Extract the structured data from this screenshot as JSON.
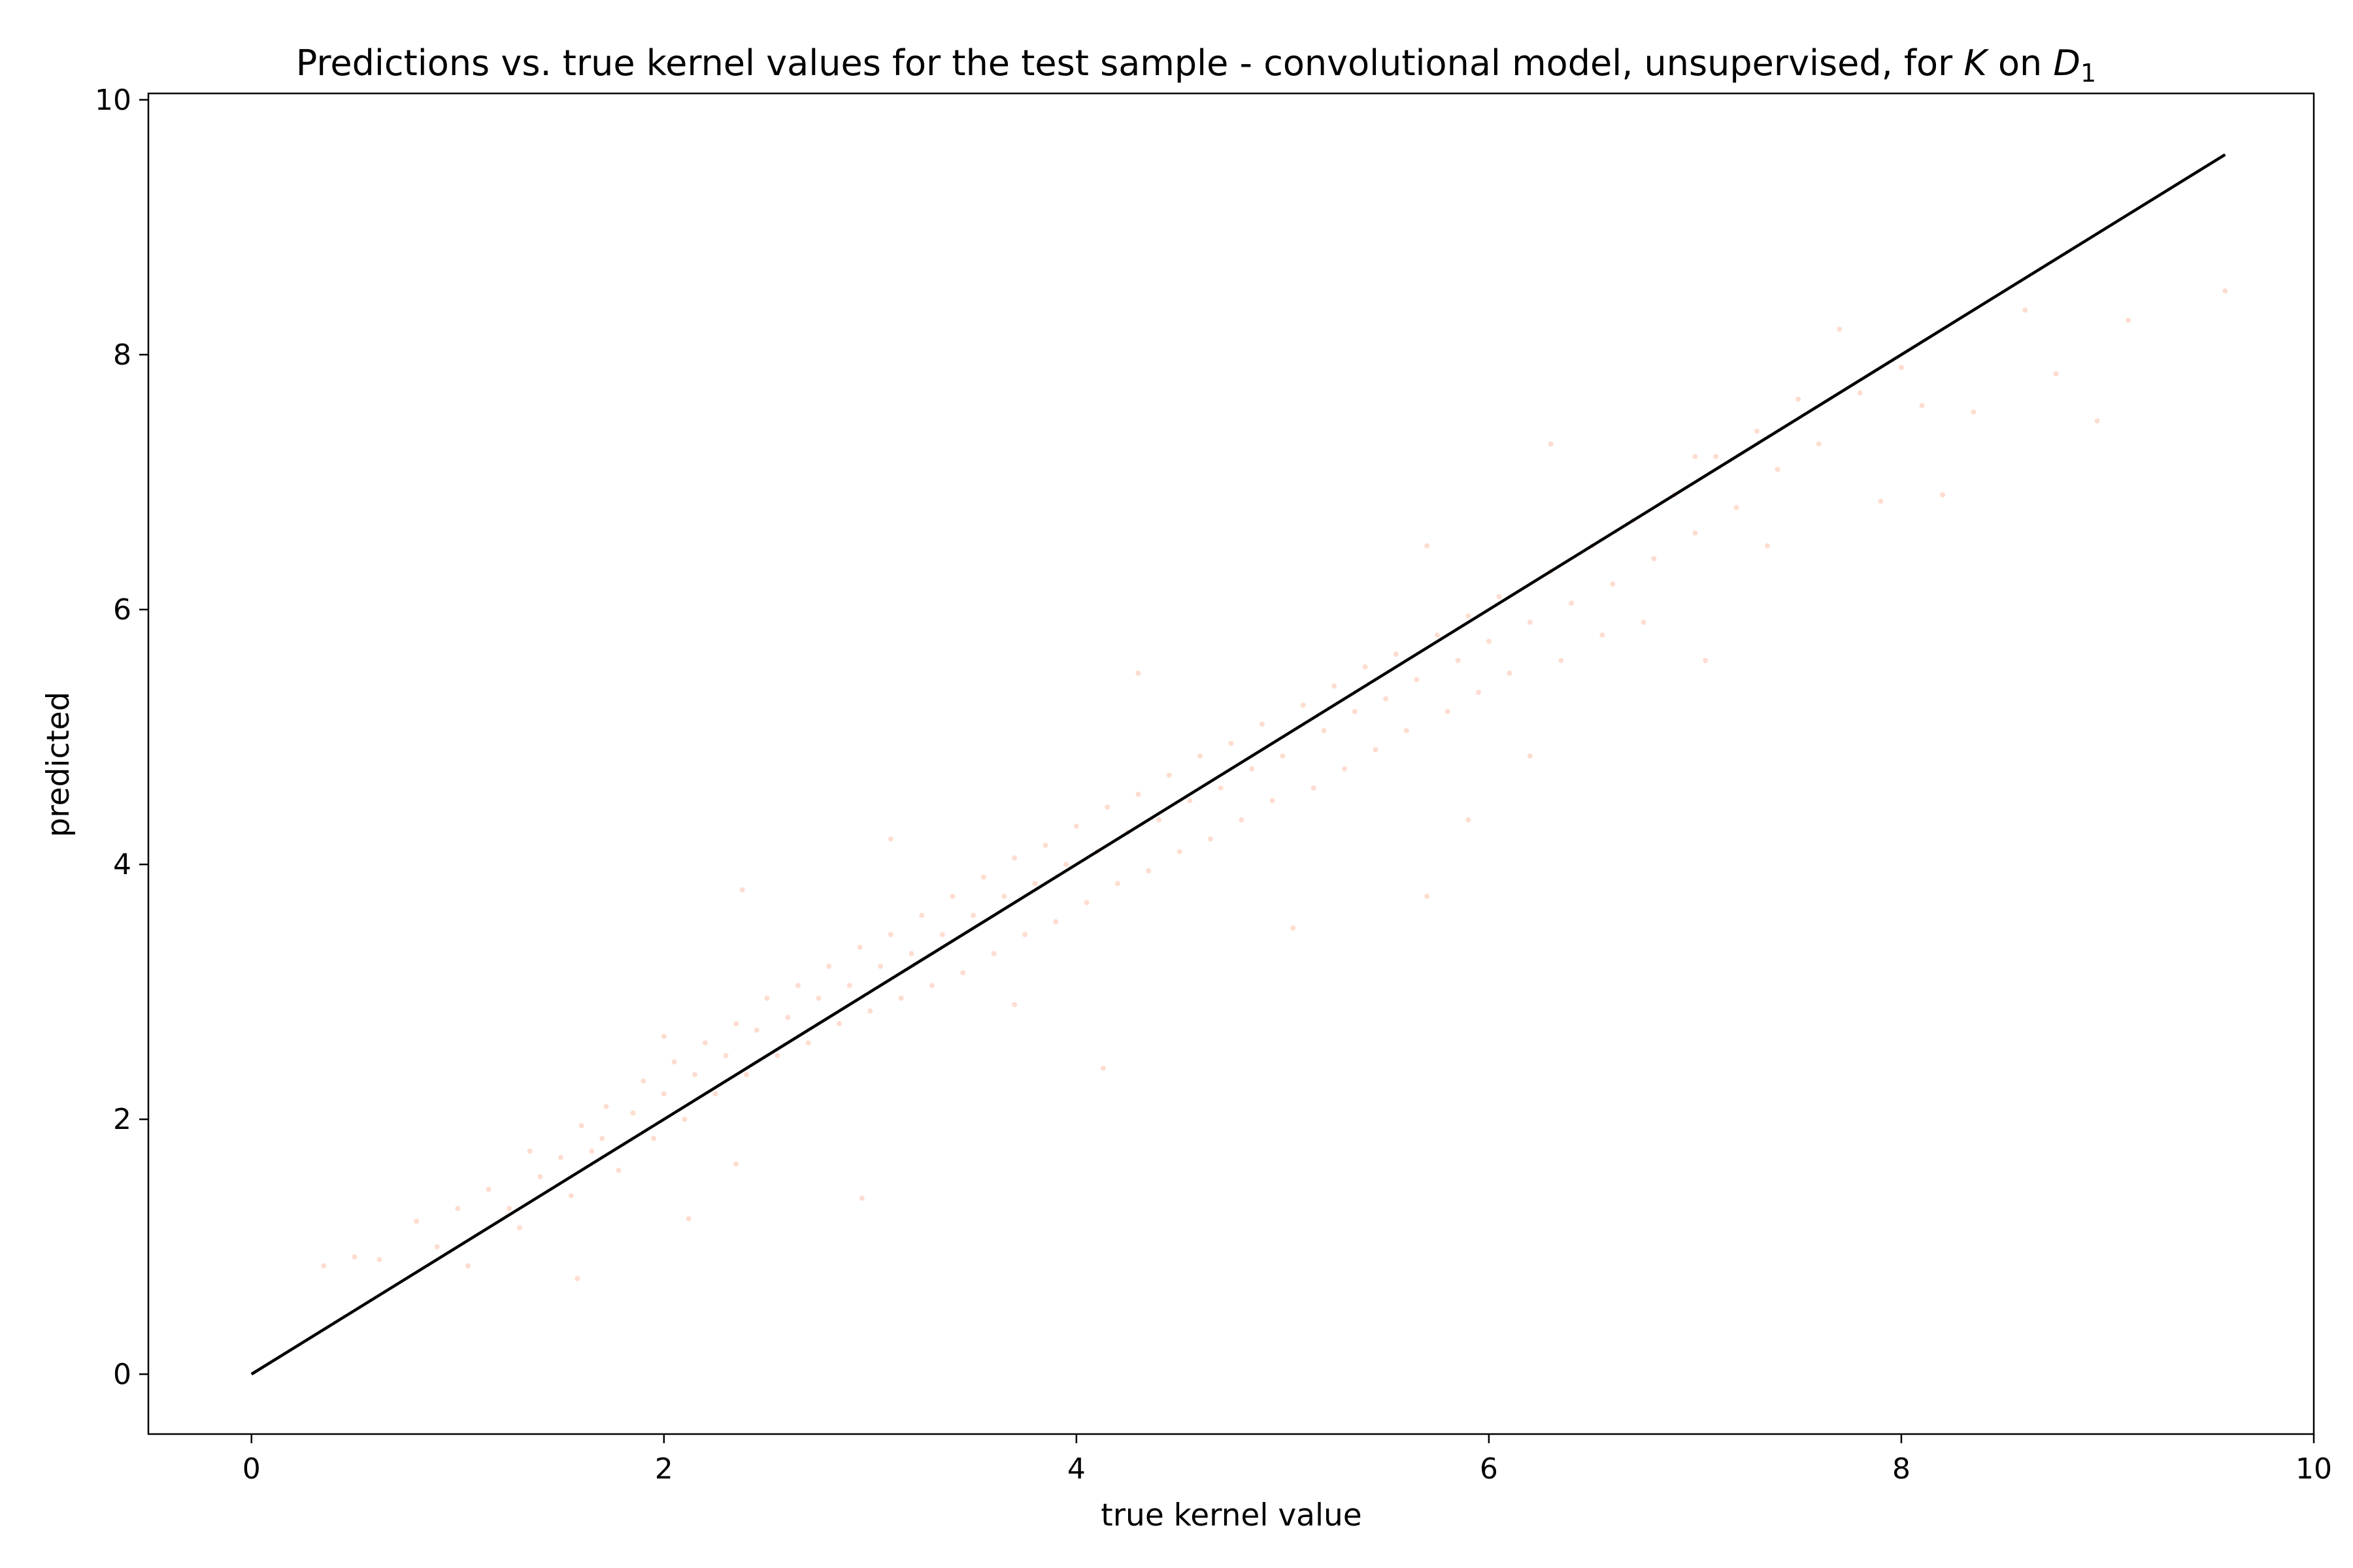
{
  "chart_data": {
    "type": "scatter",
    "title": {
      "prefix": "Predictions vs. true kernel values for the test sample - convolutional model, unsupervised, for ",
      "var_k": "K",
      "mid": " on ",
      "var_d": "D",
      "sub": "1"
    },
    "xlabel": "true kernel value",
    "ylabel": "predicted",
    "xlim": [
      -0.5,
      10
    ],
    "ylim": [
      -0.47,
      10.05
    ],
    "x_ticks": [
      0,
      2,
      4,
      6,
      8,
      10
    ],
    "y_ticks": [
      0,
      2,
      4,
      6,
      8,
      10
    ],
    "x_tick_labels": [
      "0",
      "2",
      "4",
      "6",
      "8",
      "10"
    ],
    "y_tick_labels": [
      "0",
      "2",
      "4",
      "6",
      "8",
      "10"
    ],
    "grid": false,
    "legend": "none",
    "point_color": "#fc8d62",
    "point_opacity": 0.3,
    "reference_line": {
      "x": [
        0,
        9.57
      ],
      "y": [
        0,
        9.57
      ],
      "color": "#000000"
    },
    "series": [
      {
        "points": [
          [
            0.35,
            0.85
          ],
          [
            0.5,
            0.92
          ],
          [
            0.62,
            0.9
          ],
          [
            0.8,
            1.2
          ],
          [
            0.9,
            1.0
          ],
          [
            1.0,
            1.3
          ],
          [
            1.05,
            0.85
          ],
          [
            1.15,
            1.45
          ],
          [
            1.25,
            1.3
          ],
          [
            1.35,
            1.75
          ],
          [
            1.4,
            1.55
          ],
          [
            1.5,
            1.7
          ],
          [
            1.55,
            1.4
          ],
          [
            1.6,
            1.95
          ],
          [
            1.58,
            0.75
          ],
          [
            1.65,
            1.75
          ],
          [
            1.72,
            2.1
          ],
          [
            1.78,
            1.6
          ],
          [
            1.85,
            2.05
          ],
          [
            1.9,
            2.3
          ],
          [
            1.95,
            1.85
          ],
          [
            2.0,
            2.2
          ],
          [
            2.05,
            2.45
          ],
          [
            2.1,
            2.0
          ],
          [
            2.12,
            1.22
          ],
          [
            2.15,
            2.35
          ],
          [
            2.2,
            2.6
          ],
          [
            2.25,
            2.2
          ],
          [
            2.3,
            2.5
          ],
          [
            2.35,
            2.75
          ],
          [
            2.38,
            3.8
          ],
          [
            2.4,
            2.35
          ],
          [
            2.45,
            2.7
          ],
          [
            2.5,
            2.95
          ],
          [
            2.55,
            2.5
          ],
          [
            2.6,
            2.8
          ],
          [
            2.65,
            3.05
          ],
          [
            2.7,
            2.6
          ],
          [
            2.75,
            2.95
          ],
          [
            2.8,
            3.2
          ],
          [
            2.85,
            2.75
          ],
          [
            2.9,
            3.05
          ],
          [
            2.95,
            3.35
          ],
          [
            2.96,
            1.38
          ],
          [
            3.0,
            2.85
          ],
          [
            3.05,
            3.2
          ],
          [
            3.1,
            3.45
          ],
          [
            3.15,
            2.95
          ],
          [
            3.2,
            3.3
          ],
          [
            3.25,
            3.6
          ],
          [
            3.3,
            3.05
          ],
          [
            3.35,
            3.45
          ],
          [
            3.4,
            3.75
          ],
          [
            3.45,
            3.15
          ],
          [
            3.5,
            3.6
          ],
          [
            3.55,
            3.9
          ],
          [
            3.6,
            3.3
          ],
          [
            3.65,
            3.75
          ],
          [
            3.7,
            4.05
          ],
          [
            3.75,
            3.45
          ],
          [
            3.8,
            3.85
          ],
          [
            3.85,
            4.15
          ],
          [
            3.9,
            3.55
          ],
          [
            3.95,
            4.0
          ],
          [
            4.0,
            4.3
          ],
          [
            4.05,
            3.7
          ],
          [
            4.1,
            4.1
          ],
          [
            4.13,
            2.4
          ],
          [
            4.15,
            4.45
          ],
          [
            4.2,
            3.85
          ],
          [
            4.25,
            4.25
          ],
          [
            4.3,
            4.55
          ],
          [
            4.35,
            3.95
          ],
          [
            4.4,
            4.35
          ],
          [
            4.45,
            4.7
          ],
          [
            4.5,
            4.1
          ],
          [
            4.55,
            4.5
          ],
          [
            4.6,
            4.85
          ],
          [
            4.65,
            4.2
          ],
          [
            4.7,
            4.6
          ],
          [
            4.75,
            4.95
          ],
          [
            4.8,
            4.35
          ],
          [
            4.85,
            4.75
          ],
          [
            4.9,
            5.1
          ],
          [
            4.95,
            4.5
          ],
          [
            5.0,
            4.85
          ],
          [
            5.05,
            3.5
          ],
          [
            5.1,
            5.25
          ],
          [
            5.15,
            4.6
          ],
          [
            5.2,
            5.05
          ],
          [
            5.25,
            5.4
          ],
          [
            5.3,
            4.75
          ],
          [
            5.35,
            5.2
          ],
          [
            5.4,
            5.55
          ],
          [
            5.45,
            4.9
          ],
          [
            5.5,
            5.3
          ],
          [
            5.55,
            5.65
          ],
          [
            5.6,
            5.05
          ],
          [
            5.65,
            5.45
          ],
          [
            5.7,
            3.75
          ],
          [
            5.75,
            5.8
          ],
          [
            5.8,
            5.2
          ],
          [
            5.85,
            5.6
          ],
          [
            5.9,
            5.95
          ],
          [
            5.95,
            5.35
          ],
          [
            6.0,
            5.75
          ],
          [
            6.05,
            6.1
          ],
          [
            6.1,
            5.5
          ],
          [
            6.2,
            5.9
          ],
          [
            6.3,
            6.3
          ],
          [
            6.35,
            5.6
          ],
          [
            6.4,
            6.05
          ],
          [
            6.5,
            6.5
          ],
          [
            6.55,
            5.8
          ],
          [
            6.6,
            6.2
          ],
          [
            6.7,
            6.7
          ],
          [
            6.75,
            5.9
          ],
          [
            6.8,
            6.4
          ],
          [
            6.9,
            6.9
          ],
          [
            7.0,
            6.6
          ],
          [
            7.05,
            5.6
          ],
          [
            7.1,
            7.2
          ],
          [
            7.2,
            6.8
          ],
          [
            7.3,
            7.4
          ],
          [
            7.35,
            6.5
          ],
          [
            7.4,
            7.1
          ],
          [
            7.5,
            7.65
          ],
          [
            7.6,
            7.3
          ],
          [
            7.7,
            8.2
          ],
          [
            7.8,
            7.7
          ],
          [
            7.9,
            6.85
          ],
          [
            8.0,
            7.9
          ],
          [
            8.1,
            7.6
          ],
          [
            8.2,
            6.9
          ],
          [
            8.35,
            7.55
          ],
          [
            8.6,
            8.35
          ],
          [
            8.75,
            7.85
          ],
          [
            8.95,
            7.48
          ],
          [
            9.1,
            8.27
          ],
          [
            9.57,
            8.5
          ],
          [
            1.7,
            1.85
          ],
          [
            2.35,
            1.65
          ],
          [
            3.7,
            2.9
          ],
          [
            5.9,
            4.35
          ],
          [
            4.3,
            5.5
          ],
          [
            3.1,
            4.2
          ],
          [
            2.0,
            2.65
          ],
          [
            1.3,
            1.15
          ],
          [
            6.3,
            7.3
          ],
          [
            6.2,
            4.85
          ],
          [
            7.0,
            7.2
          ],
          [
            5.7,
            6.5
          ]
        ]
      }
    ]
  }
}
